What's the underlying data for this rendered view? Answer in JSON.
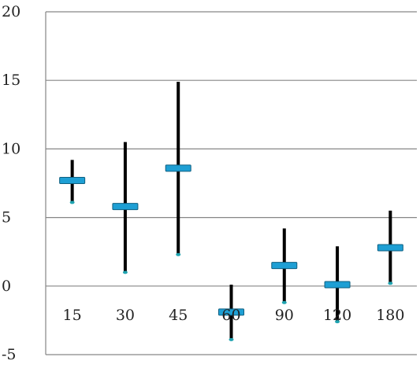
{
  "chart_data": {
    "type": "stock-high-low",
    "categories": [
      "15",
      "30",
      "45",
      "60",
      "90",
      "120",
      "180"
    ],
    "series": [
      {
        "name": "",
        "role": "mean",
        "values": [
          7.7,
          5.8,
          8.6,
          -1.9,
          1.5,
          0.1,
          2.8
        ]
      },
      {
        "name": "",
        "role": "high",
        "values": [
          9.2,
          10.5,
          14.9,
          0.1,
          4.2,
          2.9,
          5.5
        ]
      },
      {
        "name": "",
        "role": "low",
        "values": [
          6.1,
          1.0,
          2.3,
          -3.9,
          -1.2,
          -2.6,
          0.2
        ]
      }
    ],
    "y_ticks": [
      -5,
      0,
      5,
      10,
      15,
      20
    ],
    "ylim": [
      -5,
      20
    ],
    "grid": true,
    "legend": "none",
    "title": "",
    "xlabel": "",
    "ylabel": "",
    "colors": {
      "range_line": "#000000",
      "mean_marker_fill": "#1e9fd4",
      "mean_marker_stroke": "#0f5f80",
      "low_marker": "#1fa3b0",
      "gridline": "#868686",
      "tick_text": "#222222"
    }
  }
}
